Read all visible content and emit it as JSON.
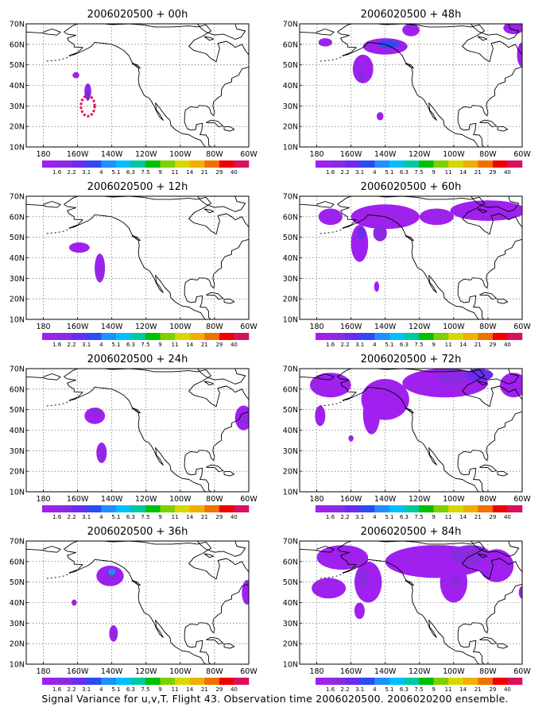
{
  "caption": "Signal Variance for u,v,T. Flight 43. Observation time 2006020500. 2006020200 ensemble.",
  "axes": {
    "x_ticks": [
      "180",
      "160W",
      "140W",
      "120W",
      "100W",
      "80W",
      "60W"
    ],
    "y_ticks": [
      "10N",
      "20N",
      "30N",
      "40N",
      "50N",
      "60N",
      "70N"
    ]
  },
  "colorbar": {
    "labels": [
      "1.6",
      "2.2",
      "3.1",
      "4",
      "5.1",
      "6.3",
      "7.5",
      "9",
      "11",
      "14",
      "21",
      "29",
      "40"
    ],
    "colors": [
      "#a020f0",
      "#8a2be2",
      "#6a2cf0",
      "#2d4bf5",
      "#1e90ff",
      "#00bfff",
      "#00c8a0",
      "#00c000",
      "#7fd000",
      "#d8d800",
      "#f0b000",
      "#f07000",
      "#f00000",
      "#d81060"
    ]
  },
  "panels": [
    {
      "id": "p00",
      "title": "2006020500 + 00h",
      "blobs": [
        {
          "lon": -161,
          "lat": 45,
          "rx": 2,
          "ry": 1.5,
          "level": 1
        },
        {
          "lon": -154,
          "lat": 37,
          "rx": 2,
          "ry": 4,
          "level": 2
        },
        {
          "lon": -154,
          "lat": 35,
          "rx": 1.2,
          "ry": 2.5,
          "level": 3
        }
      ],
      "rings": [
        {
          "lon": -154,
          "lat": 30,
          "rx": 4,
          "ry": 5,
          "color": "#e8105a"
        }
      ]
    },
    {
      "id": "p48",
      "title": "2006020500 + 48h",
      "blobs": [
        {
          "lon": -175,
          "lat": 61,
          "rx": 4,
          "ry": 2,
          "level": 1
        },
        {
          "lon": -140,
          "lat": 59,
          "rx": 13,
          "ry": 4,
          "level": 1
        },
        {
          "lon": -138,
          "lat": 60,
          "rx": 6,
          "ry": 2,
          "level": 4
        },
        {
          "lon": -153,
          "lat": 48,
          "rx": 6,
          "ry": 7,
          "level": 1
        },
        {
          "lon": -154,
          "lat": 45,
          "rx": 2,
          "ry": 3,
          "level": 2
        },
        {
          "lon": -125,
          "lat": 67,
          "rx": 5,
          "ry": 3,
          "level": 1
        },
        {
          "lon": -65,
          "lat": 68,
          "rx": 6,
          "ry": 3,
          "level": 1
        },
        {
          "lon": -60,
          "lat": 55,
          "rx": 3,
          "ry": 6,
          "level": 1
        },
        {
          "lon": -143,
          "lat": 25,
          "rx": 2,
          "ry": 2,
          "level": 1
        }
      ],
      "rings": []
    },
    {
      "id": "p12",
      "title": "2006020500 + 12h",
      "blobs": [
        {
          "lon": -159,
          "lat": 45,
          "rx": 6,
          "ry": 2.5,
          "level": 1
        },
        {
          "lon": -147,
          "lat": 35,
          "rx": 3,
          "ry": 7,
          "level": 1
        },
        {
          "lon": -147,
          "lat": 34,
          "rx": 1.5,
          "ry": 3,
          "level": 2
        }
      ],
      "rings": []
    },
    {
      "id": "p60",
      "title": "2006020500 + 60h",
      "blobs": [
        {
          "lon": -172,
          "lat": 60,
          "rx": 7,
          "ry": 4,
          "level": 1
        },
        {
          "lon": -140,
          "lat": 60,
          "rx": 20,
          "ry": 6,
          "level": 1
        },
        {
          "lon": -155,
          "lat": 47,
          "rx": 5,
          "ry": 9,
          "level": 1
        },
        {
          "lon": -154,
          "lat": 52,
          "rx": 2.5,
          "ry": 3,
          "level": 3
        },
        {
          "lon": -143,
          "lat": 52,
          "rx": 4,
          "ry": 4,
          "level": 2
        },
        {
          "lon": -110,
          "lat": 60,
          "rx": 10,
          "ry": 4,
          "level": 1
        },
        {
          "lon": -80,
          "lat": 63,
          "rx": 22,
          "ry": 5,
          "level": 1
        },
        {
          "lon": -145,
          "lat": 26,
          "rx": 1.5,
          "ry": 2.5,
          "level": 1
        }
      ],
      "rings": []
    },
    {
      "id": "p24",
      "title": "2006020500 + 24h",
      "blobs": [
        {
          "lon": -150,
          "lat": 47,
          "rx": 6,
          "ry": 4,
          "level": 1
        },
        {
          "lon": -149,
          "lat": 49,
          "rx": 3,
          "ry": 2,
          "level": 2
        },
        {
          "lon": -146,
          "lat": 29,
          "rx": 3,
          "ry": 5,
          "level": 1
        },
        {
          "lon": -146,
          "lat": 27,
          "rx": 1.5,
          "ry": 2.5,
          "level": 2
        },
        {
          "lon": -63,
          "lat": 46,
          "rx": 5,
          "ry": 6,
          "level": 1
        },
        {
          "lon": -63,
          "lat": 45,
          "rx": 2,
          "ry": 3,
          "level": 2
        }
      ],
      "rings": []
    },
    {
      "id": "p72",
      "title": "2006020500 + 72h",
      "blobs": [
        {
          "lon": -172,
          "lat": 62,
          "rx": 12,
          "ry": 6,
          "level": 1
        },
        {
          "lon": -178,
          "lat": 47,
          "rx": 3,
          "ry": 5,
          "level": 1
        },
        {
          "lon": -140,
          "lat": 55,
          "rx": 14,
          "ry": 10,
          "level": 1
        },
        {
          "lon": -148,
          "lat": 48,
          "rx": 5,
          "ry": 10,
          "level": 1
        },
        {
          "lon": -105,
          "lat": 63,
          "rx": 25,
          "ry": 7,
          "level": 1
        },
        {
          "lon": -100,
          "lat": 66,
          "rx": 10,
          "ry": 4,
          "level": 2
        },
        {
          "lon": -85,
          "lat": 67,
          "rx": 8,
          "ry": 3,
          "level": 3
        },
        {
          "lon": -65,
          "lat": 62,
          "rx": 8,
          "ry": 6,
          "level": 1
        },
        {
          "lon": -160,
          "lat": 36,
          "rx": 1.5,
          "ry": 1.5,
          "level": 1
        }
      ],
      "rings": []
    },
    {
      "id": "p36",
      "title": "2006020500 + 36h",
      "blobs": [
        {
          "lon": -141,
          "lat": 53,
          "rx": 8,
          "ry": 5,
          "level": 1
        },
        {
          "lon": -140,
          "lat": 54,
          "rx": 4,
          "ry": 3,
          "level": 2
        },
        {
          "lon": -140,
          "lat": 55,
          "rx": 2,
          "ry": 1.5,
          "level": 5
        },
        {
          "lon": -162,
          "lat": 40,
          "rx": 1.5,
          "ry": 1.5,
          "level": 1
        },
        {
          "lon": -139,
          "lat": 25,
          "rx": 2.5,
          "ry": 4,
          "level": 1
        },
        {
          "lon": -139,
          "lat": 25,
          "rx": 1.2,
          "ry": 2,
          "level": 2
        },
        {
          "lon": -61,
          "lat": 45,
          "rx": 3,
          "ry": 6,
          "level": 1
        }
      ],
      "rings": []
    },
    {
      "id": "p84",
      "title": "2006020500 + 84h",
      "blobs": [
        {
          "lon": -165,
          "lat": 62,
          "rx": 15,
          "ry": 6,
          "level": 1
        },
        {
          "lon": -173,
          "lat": 47,
          "rx": 10,
          "ry": 5,
          "level": 1
        },
        {
          "lon": -150,
          "lat": 50,
          "rx": 8,
          "ry": 10,
          "level": 1
        },
        {
          "lon": -153,
          "lat": 52,
          "rx": 3,
          "ry": 4,
          "level": 2
        },
        {
          "lon": -155,
          "lat": 36,
          "rx": 3,
          "ry": 4,
          "level": 1
        },
        {
          "lon": -110,
          "lat": 60,
          "rx": 30,
          "ry": 8,
          "level": 1
        },
        {
          "lon": -100,
          "lat": 50,
          "rx": 8,
          "ry": 10,
          "level": 1
        },
        {
          "lon": -99,
          "lat": 50,
          "rx": 2.5,
          "ry": 3,
          "level": 2
        },
        {
          "lon": -90,
          "lat": 63,
          "rx": 12,
          "ry": 5,
          "level": 2
        },
        {
          "lon": -75,
          "lat": 58,
          "rx": 10,
          "ry": 8,
          "level": 1
        },
        {
          "lon": -60,
          "lat": 45,
          "rx": 2,
          "ry": 3,
          "level": 1
        }
      ],
      "rings": []
    }
  ]
}
